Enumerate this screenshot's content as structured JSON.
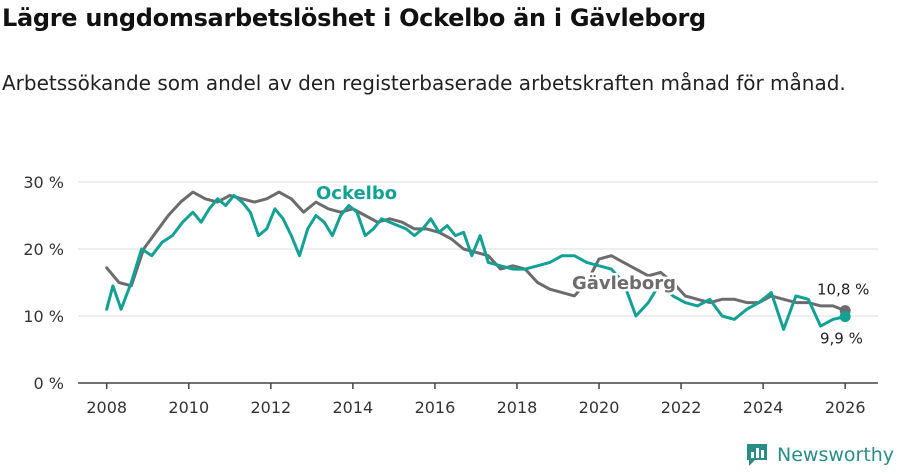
{
  "title": "Lägre ungdomsarbetslöshet i Ockelbo än i Gävleborg",
  "subtitle": "Arbetssökande som andel av den registerbaserade arbetskraften månad för månad.",
  "brand": "Newsworthy",
  "colors": {
    "ockelbo": "#13a194",
    "gavleborg": "#6d6b6c",
    "grid": "#dcdcdc",
    "axis": "#444444"
  },
  "chart_data": {
    "type": "line",
    "title": "Lägre ungdomsarbetslöshet i Ockelbo än i Gävleborg",
    "xlabel": "",
    "ylabel": "",
    "xlim": [
      2007.3,
      2026.8
    ],
    "ylim": [
      0,
      30
    ],
    "grid": true,
    "x_ticks": [
      2008,
      2010,
      2012,
      2014,
      2016,
      2018,
      2020,
      2022,
      2024,
      2026
    ],
    "x_tick_labels": [
      "2008",
      "2010",
      "2012",
      "2014",
      "2016",
      "2018",
      "2020",
      "2022",
      "2024",
      "2026"
    ],
    "y_ticks": [
      0,
      10,
      20,
      30
    ],
    "y_tick_labels": [
      "0 %",
      "10 %",
      "20 %",
      "30 %"
    ],
    "series": [
      {
        "name": "Gävleborg",
        "label": "Gävleborg",
        "end_label": "10,8 %",
        "points": [
          [
            2008.0,
            17.2
          ],
          [
            2008.3,
            15.0
          ],
          [
            2008.6,
            14.5
          ],
          [
            2008.9,
            20.0
          ],
          [
            2009.2,
            22.5
          ],
          [
            2009.5,
            25.0
          ],
          [
            2009.8,
            27.0
          ],
          [
            2010.1,
            28.5
          ],
          [
            2010.4,
            27.5
          ],
          [
            2010.7,
            27.0
          ],
          [
            2011.0,
            28.0
          ],
          [
            2011.3,
            27.5
          ],
          [
            2011.6,
            27.0
          ],
          [
            2011.9,
            27.5
          ],
          [
            2012.2,
            28.5
          ],
          [
            2012.5,
            27.5
          ],
          [
            2012.8,
            25.5
          ],
          [
            2013.1,
            27.0
          ],
          [
            2013.4,
            26.0
          ],
          [
            2013.7,
            25.5
          ],
          [
            2014.0,
            26.0
          ],
          [
            2014.3,
            25.0
          ],
          [
            2014.6,
            24.0
          ],
          [
            2014.9,
            24.5
          ],
          [
            2015.2,
            24.0
          ],
          [
            2015.5,
            23.0
          ],
          [
            2015.8,
            23.0
          ],
          [
            2016.1,
            22.5
          ],
          [
            2016.4,
            21.5
          ],
          [
            2016.7,
            20.0
          ],
          [
            2017.0,
            19.5
          ],
          [
            2017.3,
            19.0
          ],
          [
            2017.6,
            17.0
          ],
          [
            2017.9,
            17.5
          ],
          [
            2018.2,
            17.0
          ],
          [
            2018.5,
            15.0
          ],
          [
            2018.8,
            14.0
          ],
          [
            2019.1,
            13.5
          ],
          [
            2019.4,
            13.0
          ],
          [
            2019.7,
            15.0
          ],
          [
            2020.0,
            18.5
          ],
          [
            2020.3,
            19.0
          ],
          [
            2020.6,
            18.0
          ],
          [
            2020.9,
            17.0
          ],
          [
            2021.2,
            16.0
          ],
          [
            2021.5,
            16.5
          ],
          [
            2021.8,
            15.0
          ],
          [
            2022.1,
            13.0
          ],
          [
            2022.4,
            12.5
          ],
          [
            2022.7,
            12.0
          ],
          [
            2023.0,
            12.5
          ],
          [
            2023.3,
            12.5
          ],
          [
            2023.6,
            12.0
          ],
          [
            2023.9,
            12.0
          ],
          [
            2024.2,
            13.0
          ],
          [
            2024.5,
            12.5
          ],
          [
            2024.8,
            12.0
          ],
          [
            2025.1,
            12.0
          ],
          [
            2025.4,
            11.5
          ],
          [
            2025.7,
            11.5
          ],
          [
            2026.0,
            10.8
          ]
        ]
      },
      {
        "name": "Ockelbo",
        "label": "Ockelbo",
        "end_label": "9,9 %",
        "points": [
          [
            2008.0,
            11.0
          ],
          [
            2008.15,
            14.5
          ],
          [
            2008.35,
            11.0
          ],
          [
            2008.6,
            15.0
          ],
          [
            2008.85,
            20.0
          ],
          [
            2009.1,
            19.0
          ],
          [
            2009.35,
            21.0
          ],
          [
            2009.6,
            22.0
          ],
          [
            2009.85,
            24.0
          ],
          [
            2010.1,
            25.5
          ],
          [
            2010.3,
            24.0
          ],
          [
            2010.5,
            26.0
          ],
          [
            2010.7,
            27.5
          ],
          [
            2010.9,
            26.5
          ],
          [
            2011.1,
            28.0
          ],
          [
            2011.3,
            27.0
          ],
          [
            2011.5,
            25.5
          ],
          [
            2011.7,
            22.0
          ],
          [
            2011.9,
            23.0
          ],
          [
            2012.1,
            26.0
          ],
          [
            2012.3,
            24.5
          ],
          [
            2012.5,
            22.0
          ],
          [
            2012.7,
            19.0
          ],
          [
            2012.9,
            23.0
          ],
          [
            2013.1,
            25.0
          ],
          [
            2013.3,
            24.0
          ],
          [
            2013.5,
            22.0
          ],
          [
            2013.7,
            25.0
          ],
          [
            2013.9,
            26.5
          ],
          [
            2014.1,
            25.5
          ],
          [
            2014.3,
            22.0
          ],
          [
            2014.5,
            23.0
          ],
          [
            2014.7,
            24.5
          ],
          [
            2014.9,
            24.0
          ],
          [
            2015.1,
            23.5
          ],
          [
            2015.3,
            23.0
          ],
          [
            2015.5,
            22.0
          ],
          [
            2015.7,
            23.0
          ],
          [
            2015.9,
            24.5
          ],
          [
            2016.1,
            22.5
          ],
          [
            2016.3,
            23.5
          ],
          [
            2016.5,
            22.0
          ],
          [
            2016.7,
            22.5
          ],
          [
            2016.9,
            19.0
          ],
          [
            2017.1,
            22.0
          ],
          [
            2017.3,
            18.0
          ],
          [
            2017.6,
            17.5
          ],
          [
            2017.9,
            17.0
          ],
          [
            2018.2,
            17.0
          ],
          [
            2018.5,
            17.5
          ],
          [
            2018.8,
            18.0
          ],
          [
            2019.1,
            19.0
          ],
          [
            2019.4,
            19.0
          ],
          [
            2019.7,
            18.0
          ],
          [
            2020.0,
            17.5
          ],
          [
            2020.3,
            17.0
          ],
          [
            2020.6,
            15.0
          ],
          [
            2020.9,
            10.0
          ],
          [
            2021.2,
            12.0
          ],
          [
            2021.5,
            15.0
          ],
          [
            2021.8,
            13.0
          ],
          [
            2022.1,
            12.0
          ],
          [
            2022.4,
            11.5
          ],
          [
            2022.7,
            12.5
          ],
          [
            2023.0,
            10.0
          ],
          [
            2023.3,
            9.5
          ],
          [
            2023.6,
            11.0
          ],
          [
            2023.9,
            12.0
          ],
          [
            2024.2,
            13.5
          ],
          [
            2024.5,
            8.0
          ],
          [
            2024.8,
            13.0
          ],
          [
            2025.1,
            12.5
          ],
          [
            2025.4,
            8.5
          ],
          [
            2025.7,
            9.5
          ],
          [
            2026.0,
            9.9
          ]
        ]
      }
    ]
  }
}
